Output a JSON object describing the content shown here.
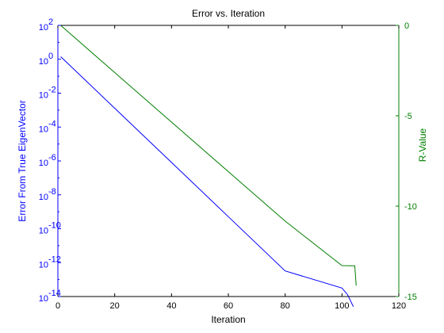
{
  "chart_data": {
    "type": "line",
    "title": "Error vs. Iteration",
    "xlabel": "Iteration",
    "ylabel_left": "Error From True EigenVector",
    "ylabel_right": "R-Value",
    "xlim": [
      0,
      120
    ],
    "x_ticks": [
      0,
      20,
      40,
      60,
      80,
      100,
      120
    ],
    "x_tick_labels": [
      "0",
      "20",
      "40",
      "60",
      "80",
      "100",
      "120"
    ],
    "ylim_left_log10": [
      -14,
      2
    ],
    "y_left_scale": "log",
    "y_left_tick_exponents": [
      2,
      0,
      -2,
      -4,
      -6,
      -8,
      -10,
      -12,
      -14
    ],
    "y_left_tick_labels": [
      "10",
      "10",
      "10",
      "10",
      "10",
      "10",
      "10",
      "10",
      "10"
    ],
    "y_left_tick_superscripts": [
      "2",
      "0",
      "-2",
      "-4",
      "-6",
      "-8",
      "-10",
      "-12",
      "-14"
    ],
    "ylim_right": [
      -15,
      0
    ],
    "y_right_ticks": [
      0,
      -5,
      -10,
      -15
    ],
    "y_right_tick_labels": [
      "0",
      "-5",
      "-10",
      "-15"
    ],
    "grid": false,
    "colors": {
      "left_axis": "#0000ff",
      "right_axis": "#007f00",
      "text": "#000000"
    },
    "series": [
      {
        "axis": "left",
        "color": "#0000ff",
        "x": [
          1,
          20,
          40,
          60,
          80,
          100,
          102,
          104
        ],
        "log10_y": [
          0.15,
          -2.89,
          -6.09,
          -9.29,
          -12.49,
          -13.5,
          -13.9,
          -14.6
        ]
      },
      {
        "axis": "right",
        "color": "#007f00",
        "x": [
          1,
          20,
          40,
          60,
          80,
          100,
          104.5,
          105
        ],
        "y": [
          0.0,
          -2.61,
          -5.35,
          -8.09,
          -10.83,
          -13.29,
          -13.3,
          -14.4
        ]
      }
    ]
  }
}
